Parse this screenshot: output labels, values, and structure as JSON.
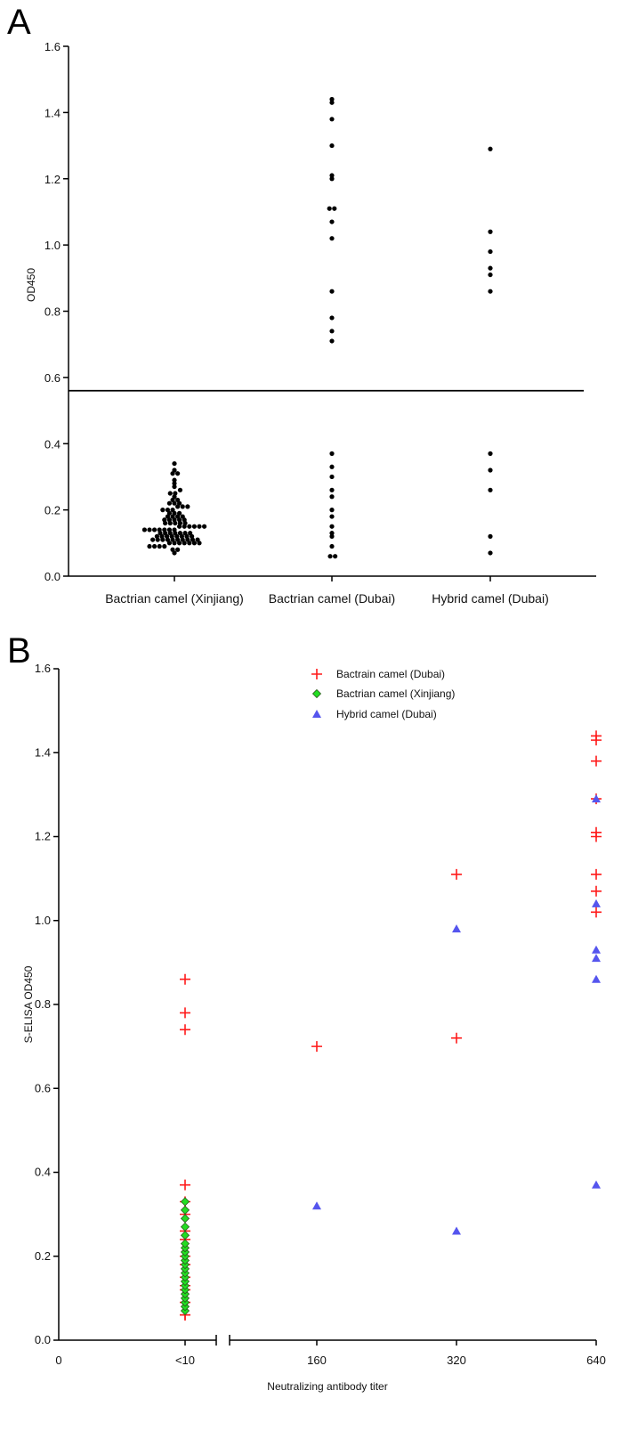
{
  "chart_data": [
    {
      "panel": "A",
      "type": "scatter",
      "ylabel": "OD450",
      "ylim": [
        0,
        1.6
      ],
      "yticks": [
        "0.0",
        "0.2",
        "0.4",
        "0.6",
        "0.8",
        "1.0",
        "1.2",
        "1.4",
        "1.6"
      ],
      "categories": [
        "Bactrian camel (Xinjiang)",
        "Bactrian camel (Dubai)",
        "Hybrid camel (Dubai)"
      ],
      "cutoff": 0.56,
      "series": [
        {
          "values": [
            0.07,
            0.08,
            0.08,
            0.09,
            0.09,
            0.09,
            0.09,
            0.1,
            0.1,
            0.1,
            0.1,
            0.1,
            0.1,
            0.1,
            0.11,
            0.11,
            0.11,
            0.11,
            0.11,
            0.11,
            0.11,
            0.11,
            0.11,
            0.11,
            0.12,
            0.12,
            0.12,
            0.12,
            0.12,
            0.12,
            0.12,
            0.12,
            0.13,
            0.13,
            0.13,
            0.13,
            0.13,
            0.13,
            0.13,
            0.14,
            0.14,
            0.14,
            0.14,
            0.14,
            0.14,
            0.14,
            0.15,
            0.15,
            0.15,
            0.15,
            0.15,
            0.15,
            0.16,
            0.16,
            0.16,
            0.16,
            0.16,
            0.17,
            0.17,
            0.17,
            0.17,
            0.17,
            0.18,
            0.18,
            0.18,
            0.18,
            0.19,
            0.19,
            0.19,
            0.2,
            0.2,
            0.2,
            0.21,
            0.21,
            0.21,
            0.22,
            0.22,
            0.22,
            0.23,
            0.23,
            0.24,
            0.25,
            0.25,
            0.26,
            0.27,
            0.28,
            0.29,
            0.31,
            0.31,
            0.32,
            0.34
          ]
        },
        {
          "values": [
            0.06,
            0.06,
            0.09,
            0.12,
            0.13,
            0.15,
            0.18,
            0.2,
            0.24,
            0.26,
            0.3,
            0.33,
            0.37,
            0.71,
            0.74,
            0.78,
            0.86,
            1.02,
            1.07,
            1.11,
            1.11,
            1.2,
            1.21,
            1.3,
            1.38,
            1.43,
            1.44
          ]
        },
        {
          "values": [
            0.07,
            0.12,
            0.26,
            0.32,
            0.37,
            0.86,
            0.91,
            0.93,
            0.98,
            1.04,
            1.29
          ]
        }
      ]
    },
    {
      "panel": "B",
      "type": "scatter",
      "ylabel": "S-ELISA OD450",
      "xlabel": "Neutralizing antibody titer",
      "ylim": [
        0,
        1.6
      ],
      "yticks": [
        "0.0",
        "0.2",
        "0.4",
        "0.6",
        "0.8",
        "1.0",
        "1.2",
        "1.4",
        "1.6"
      ],
      "xticks": [
        "0",
        "<10",
        "160",
        "320",
        "640"
      ],
      "series": [
        {
          "name": "Bactrain camel (Dubai)",
          "color": "#ff1a1a",
          "marker": "plus",
          "points": [
            [
              "<10",
              0.06
            ],
            [
              "<10",
              0.06
            ],
            [
              "<10",
              0.09
            ],
            [
              "<10",
              0.12
            ],
            [
              "<10",
              0.13
            ],
            [
              "<10",
              0.15
            ],
            [
              "<10",
              0.18
            ],
            [
              "<10",
              0.2
            ],
            [
              "<10",
              0.24
            ],
            [
              "<10",
              0.26
            ],
            [
              "<10",
              0.3
            ],
            [
              "<10",
              0.33
            ],
            [
              "<10",
              0.37
            ],
            [
              "<10",
              0.74
            ],
            [
              "<10",
              0.78
            ],
            [
              "<10",
              0.86
            ],
            [
              "160",
              0.7
            ],
            [
              "320",
              0.72
            ],
            [
              "320",
              1.11
            ],
            [
              "640",
              1.02
            ],
            [
              "640",
              1.07
            ],
            [
              "640",
              1.11
            ],
            [
              "640",
              1.2
            ],
            [
              "640",
              1.21
            ],
            [
              "640",
              1.29
            ],
            [
              "640",
              1.38
            ],
            [
              "640",
              1.43
            ],
            [
              "640",
              1.44
            ]
          ]
        },
        {
          "name": "Bactrian camel (Xinjiang)",
          "color": "#22dd22",
          "marker": "diamond",
          "points": [
            [
              "<10",
              0.07
            ],
            [
              "<10",
              0.08
            ],
            [
              "<10",
              0.09
            ],
            [
              "<10",
              0.1
            ],
            [
              "<10",
              0.11
            ],
            [
              "<10",
              0.12
            ],
            [
              "<10",
              0.13
            ],
            [
              "<10",
              0.14
            ],
            [
              "<10",
              0.15
            ],
            [
              "<10",
              0.16
            ],
            [
              "<10",
              0.17
            ],
            [
              "<10",
              0.18
            ],
            [
              "<10",
              0.19
            ],
            [
              "<10",
              0.2
            ],
            [
              "<10",
              0.21
            ],
            [
              "<10",
              0.22
            ],
            [
              "<10",
              0.23
            ],
            [
              "<10",
              0.25
            ],
            [
              "<10",
              0.27
            ],
            [
              "<10",
              0.29
            ],
            [
              "<10",
              0.31
            ],
            [
              "<10",
              0.33
            ]
          ]
        },
        {
          "name": "Hybrid camel (Dubai)",
          "color": "#5555ee",
          "marker": "triangle",
          "points": [
            [
              "160",
              0.32
            ],
            [
              "320",
              0.26
            ],
            [
              "320",
              0.98
            ],
            [
              "640",
              0.37
            ],
            [
              "640",
              0.86
            ],
            [
              "640",
              0.91
            ],
            [
              "640",
              0.93
            ],
            [
              "640",
              1.04
            ],
            [
              "640",
              1.29
            ]
          ]
        }
      ]
    }
  ]
}
